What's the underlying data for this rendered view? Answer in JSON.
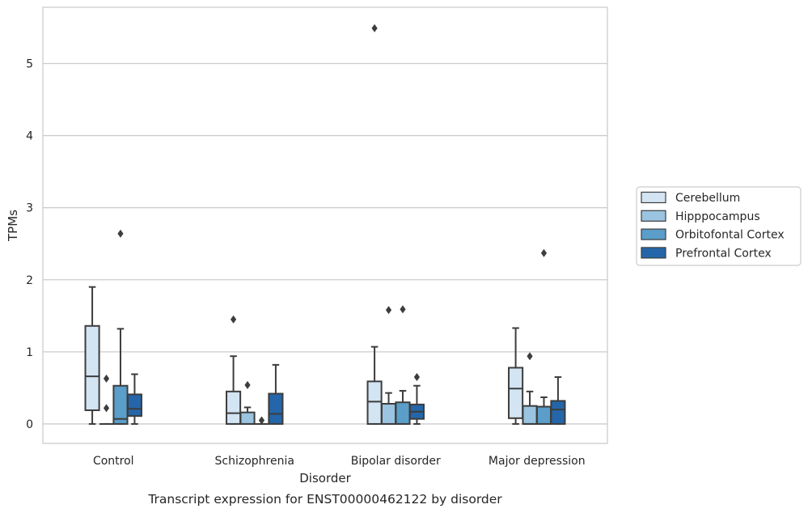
{
  "chart_data": {
    "type": "box",
    "title": "",
    "caption": "Transcript expression for ENST00000462122 by disorder",
    "xlabel": "Disorder",
    "ylabel": "TPMs",
    "ylim": [
      -0.27,
      5.78
    ],
    "yticks": [
      0,
      1,
      2,
      3,
      4,
      5
    ],
    "grid": true,
    "legend_position": "right",
    "categories": [
      "Control",
      "Schizophrenia",
      "Bipolar disorder",
      "Major depression"
    ],
    "series": [
      {
        "name": "Cerebellum",
        "color": "#d3e4f3",
        "boxes": [
          {
            "whislo": 0.0,
            "q1": 0.19,
            "med": 0.66,
            "q3": 1.36,
            "whishi": 1.9,
            "fliers": []
          },
          {
            "whislo": 0.0,
            "q1": 0.0,
            "med": 0.15,
            "q3": 0.45,
            "whishi": 0.94,
            "fliers": [
              1.45
            ]
          },
          {
            "whislo": 0.0,
            "q1": 0.0,
            "med": 0.31,
            "q3": 0.59,
            "whishi": 1.07,
            "fliers": [
              5.49
            ]
          },
          {
            "whislo": 0.0,
            "q1": 0.08,
            "med": 0.49,
            "q3": 0.78,
            "whishi": 1.33,
            "fliers": []
          }
        ]
      },
      {
        "name": "Hipppocampus",
        "color": "#9ac4e0",
        "boxes": [
          {
            "whislo": 0.0,
            "q1": 0.0,
            "med": 0.0,
            "q3": 0.0,
            "whishi": 0.0,
            "fliers": [
              0.63,
              0.22
            ]
          },
          {
            "whislo": 0.0,
            "q1": 0.0,
            "med": 0.0,
            "q3": 0.16,
            "whishi": 0.23,
            "fliers": [
              0.54
            ]
          },
          {
            "whislo": 0.0,
            "q1": 0.0,
            "med": 0.0,
            "q3": 0.28,
            "whishi": 0.43,
            "fliers": [
              1.58
            ]
          },
          {
            "whislo": 0.0,
            "q1": 0.0,
            "med": 0.0,
            "q3": 0.25,
            "whishi": 0.45,
            "fliers": [
              0.94
            ]
          }
        ]
      },
      {
        "name": "Orbitofontal Cortex",
        "color": "#5a9ec9",
        "boxes": [
          {
            "whislo": 0.0,
            "q1": 0.0,
            "med": 0.07,
            "q3": 0.53,
            "whishi": 1.32,
            "fliers": [
              2.64
            ]
          },
          {
            "whislo": 0.0,
            "q1": 0.0,
            "med": 0.0,
            "q3": 0.0,
            "whishi": 0.0,
            "fliers": [
              0.05
            ]
          },
          {
            "whislo": 0.0,
            "q1": 0.0,
            "med": 0.0,
            "q3": 0.3,
            "whishi": 0.46,
            "fliers": [
              1.59
            ]
          },
          {
            "whislo": 0.0,
            "q1": 0.0,
            "med": 0.0,
            "q3": 0.24,
            "whishi": 0.37,
            "fliers": [
              2.37
            ]
          }
        ]
      },
      {
        "name": "Prefrontal Cortex",
        "color": "#2466a9",
        "boxes": [
          {
            "whislo": 0.0,
            "q1": 0.11,
            "med": 0.21,
            "q3": 0.41,
            "whishi": 0.69,
            "fliers": []
          },
          {
            "whislo": 0.0,
            "q1": 0.0,
            "med": 0.14,
            "q3": 0.42,
            "whishi": 0.82,
            "fliers": []
          },
          {
            "whislo": 0.0,
            "q1": 0.07,
            "med": 0.17,
            "q3": 0.27,
            "whishi": 0.53,
            "fliers": [
              0.65
            ]
          },
          {
            "whislo": 0.0,
            "q1": 0.0,
            "med": 0.2,
            "q3": 0.32,
            "whishi": 0.65,
            "fliers": []
          }
        ]
      }
    ]
  }
}
